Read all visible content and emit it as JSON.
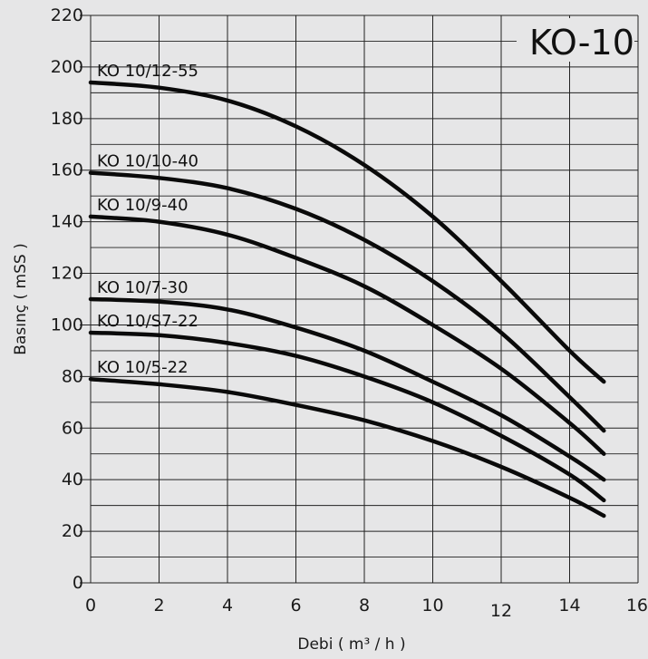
{
  "chart_data": {
    "type": "line",
    "title": "KO-10",
    "xlabel": "Debi ( m³ / h )",
    "ylabel": "Basınç ( mSS )",
    "xlim": [
      0,
      16
    ],
    "ylim": [
      0,
      220
    ],
    "xticks": [
      0,
      2,
      4,
      6,
      8,
      10,
      12,
      14,
      16
    ],
    "yticks": [
      0,
      20,
      40,
      60,
      80,
      100,
      120,
      140,
      160,
      180,
      200,
      220
    ],
    "grid": true,
    "series": [
      {
        "name": "KO 10/12-55",
        "x": [
          0,
          2,
          4,
          6,
          8,
          10,
          12,
          14,
          15
        ],
        "y": [
          194,
          192,
          187,
          177,
          162,
          142,
          117,
          90,
          78
        ]
      },
      {
        "name": "KO 10/10-40",
        "x": [
          0,
          2,
          4,
          6,
          8,
          10,
          12,
          14,
          15
        ],
        "y": [
          159,
          157,
          153,
          145,
          133,
          117,
          97,
          72,
          59
        ]
      },
      {
        "name": "KO 10/9-40",
        "x": [
          0,
          2,
          4,
          6,
          8,
          10,
          12,
          14,
          15
        ],
        "y": [
          142,
          140,
          135,
          126,
          115,
          100,
          83,
          62,
          50
        ]
      },
      {
        "name": "KO 10/7-30",
        "x": [
          0,
          2,
          4,
          6,
          8,
          10,
          12,
          14,
          15
        ],
        "y": [
          110,
          109,
          106,
          99,
          90,
          78,
          65,
          49,
          40
        ]
      },
      {
        "name": "KO 10/S7-22",
        "x": [
          0,
          2,
          4,
          6,
          8,
          10,
          12,
          14,
          15
        ],
        "y": [
          97,
          96,
          93,
          88,
          80,
          70,
          57,
          42,
          32
        ]
      },
      {
        "name": "KO 10/5-22",
        "x": [
          0,
          2,
          4,
          6,
          8,
          10,
          12,
          14,
          15
        ],
        "y": [
          79,
          77,
          74,
          69,
          63,
          55,
          45,
          33,
          26
        ]
      }
    ]
  }
}
